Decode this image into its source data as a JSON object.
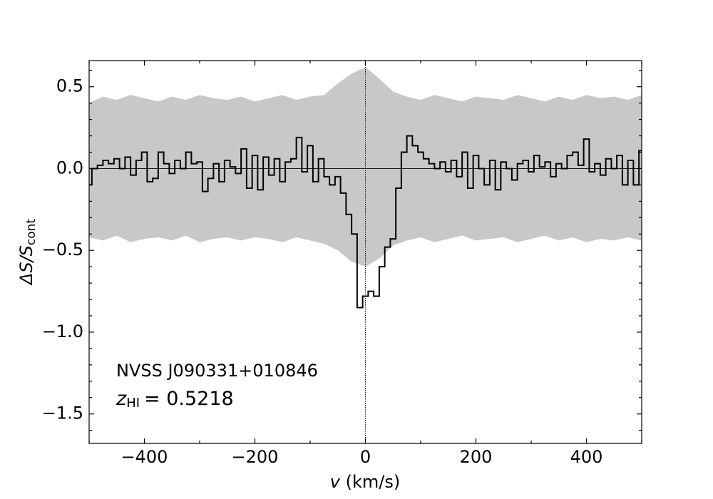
{
  "chart_data": {
    "type": "step",
    "xlabel": {
      "symbol": "v",
      "unit": "(km/s)"
    },
    "ylabel": {
      "main": "ΔS/S",
      "subscript": "cont"
    },
    "annotations": {
      "source": "NVSS J090331+010846",
      "redshift": {
        "symbol": "z",
        "subscript": "HI",
        "text": "= 0.5218"
      }
    },
    "xlim": [
      -500,
      500
    ],
    "ylim": [
      -1.68,
      0.66
    ],
    "xticks": [
      {
        "value": -400,
        "label": "−400"
      },
      {
        "value": -200,
        "label": "−200"
      },
      0,
      200,
      400
    ],
    "yticks": [
      {
        "value": -1.5,
        "label": "−1.5"
      },
      {
        "value": -1.0,
        "label": "−1.0"
      },
      {
        "value": -0.5,
        "label": "−0.5"
      },
      {
        "value": 0,
        "label": "0.0"
      },
      0.5
    ],
    "xminorticks": [
      -500,
      -300,
      -100,
      100,
      300,
      500
    ],
    "yminorticks": [
      -1.6,
      -1.4,
      -1.3,
      -1.2,
      -1.1,
      -0.9,
      -0.8,
      -0.7,
      -0.6,
      -0.4,
      -0.3,
      -0.2,
      -0.1,
      0.1,
      0.2,
      0.3,
      0.4,
      0.6
    ],
    "hline": 0,
    "vline": 0,
    "color": "#000000",
    "band_color": "#c8c8c8",
    "x": [
      -500,
      -490,
      -480,
      -470,
      -460,
      -450,
      -440,
      -430,
      -420,
      -410,
      -400,
      -390,
      -380,
      -370,
      -360,
      -350,
      -340,
      -330,
      -320,
      -310,
      -300,
      -290,
      -280,
      -270,
      -260,
      -250,
      -240,
      -230,
      -220,
      -210,
      -200,
      -190,
      -180,
      -170,
      -160,
      -150,
      -140,
      -130,
      -120,
      -110,
      -100,
      -90,
      -80,
      -70,
      -60,
      -50,
      -40,
      -30,
      -20,
      -10,
      0,
      10,
      20,
      30,
      40,
      50,
      60,
      70,
      80,
      90,
      100,
      110,
      120,
      130,
      140,
      150,
      160,
      170,
      180,
      190,
      200,
      210,
      220,
      230,
      240,
      250,
      260,
      270,
      280,
      290,
      300,
      310,
      320,
      330,
      340,
      350,
      360,
      370,
      380,
      390,
      400,
      410,
      420,
      430,
      440,
      450,
      460,
      470,
      480,
      490,
      500
    ],
    "values": [
      -0.1,
      0.0,
      0.02,
      0.05,
      0.03,
      0.06,
      0.0,
      0.07,
      -0.04,
      0.05,
      0.1,
      -0.08,
      -0.06,
      0.1,
      0.03,
      -0.03,
      0.05,
      0.0,
      0.1,
      0.03,
      0.04,
      -0.14,
      -0.06,
      0.03,
      -0.08,
      0.05,
      0.01,
      -0.03,
      0.12,
      -0.12,
      0.08,
      -0.13,
      0.07,
      -0.04,
      0.06,
      -0.08,
      0.04,
      0.06,
      0.19,
      -0.02,
      0.14,
      -0.08,
      0.06,
      -0.05,
      -0.1,
      -0.05,
      -0.15,
      -0.28,
      -0.4,
      -0.85,
      -0.78,
      -0.75,
      -0.78,
      -0.6,
      -0.48,
      -0.43,
      -0.12,
      0.1,
      0.2,
      0.14,
      0.1,
      0.06,
      0.03,
      0.0,
      0.04,
      -0.02,
      0.05,
      -0.05,
      0.1,
      -0.12,
      0.08,
      0.0,
      -0.1,
      0.05,
      -0.13,
      0.04,
      0.0,
      -0.07,
      0.03,
      0.05,
      -0.02,
      0.08,
      0.01,
      0.04,
      -0.05,
      0.03,
      0.0,
      0.08,
      0.1,
      0.02,
      0.18,
      -0.02,
      0.03,
      -0.04,
      0.06,
      0.0,
      0.08,
      -0.1,
      0.05,
      -0.1,
      0.11
    ],
    "band": {
      "x": [
        -500,
        -475,
        -450,
        -425,
        -400,
        -375,
        -350,
        -325,
        -300,
        -275,
        -250,
        -225,
        -200,
        -175,
        -150,
        -125,
        -100,
        -75,
        -50,
        -25,
        0,
        25,
        50,
        75,
        100,
        125,
        150,
        175,
        200,
        225,
        250,
        275,
        300,
        325,
        350,
        375,
        400,
        425,
        450,
        475,
        500
      ],
      "upper": [
        0.4,
        0.44,
        0.42,
        0.45,
        0.43,
        0.41,
        0.44,
        0.42,
        0.45,
        0.43,
        0.42,
        0.44,
        0.41,
        0.43,
        0.45,
        0.42,
        0.44,
        0.45,
        0.52,
        0.58,
        0.62,
        0.55,
        0.47,
        0.44,
        0.42,
        0.45,
        0.43,
        0.41,
        0.44,
        0.43,
        0.42,
        0.45,
        0.43,
        0.41,
        0.44,
        0.42,
        0.45,
        0.43,
        0.44,
        0.42,
        0.45
      ],
      "lower": [
        -0.42,
        -0.44,
        -0.41,
        -0.45,
        -0.43,
        -0.42,
        -0.44,
        -0.41,
        -0.45,
        -0.43,
        -0.42,
        -0.44,
        -0.42,
        -0.43,
        -0.45,
        -0.42,
        -0.44,
        -0.46,
        -0.5,
        -0.57,
        -0.6,
        -0.55,
        -0.47,
        -0.44,
        -0.42,
        -0.45,
        -0.43,
        -0.41,
        -0.44,
        -0.43,
        -0.42,
        -0.45,
        -0.43,
        -0.41,
        -0.44,
        -0.42,
        -0.45,
        -0.43,
        -0.44,
        -0.42,
        -0.44
      ]
    }
  }
}
